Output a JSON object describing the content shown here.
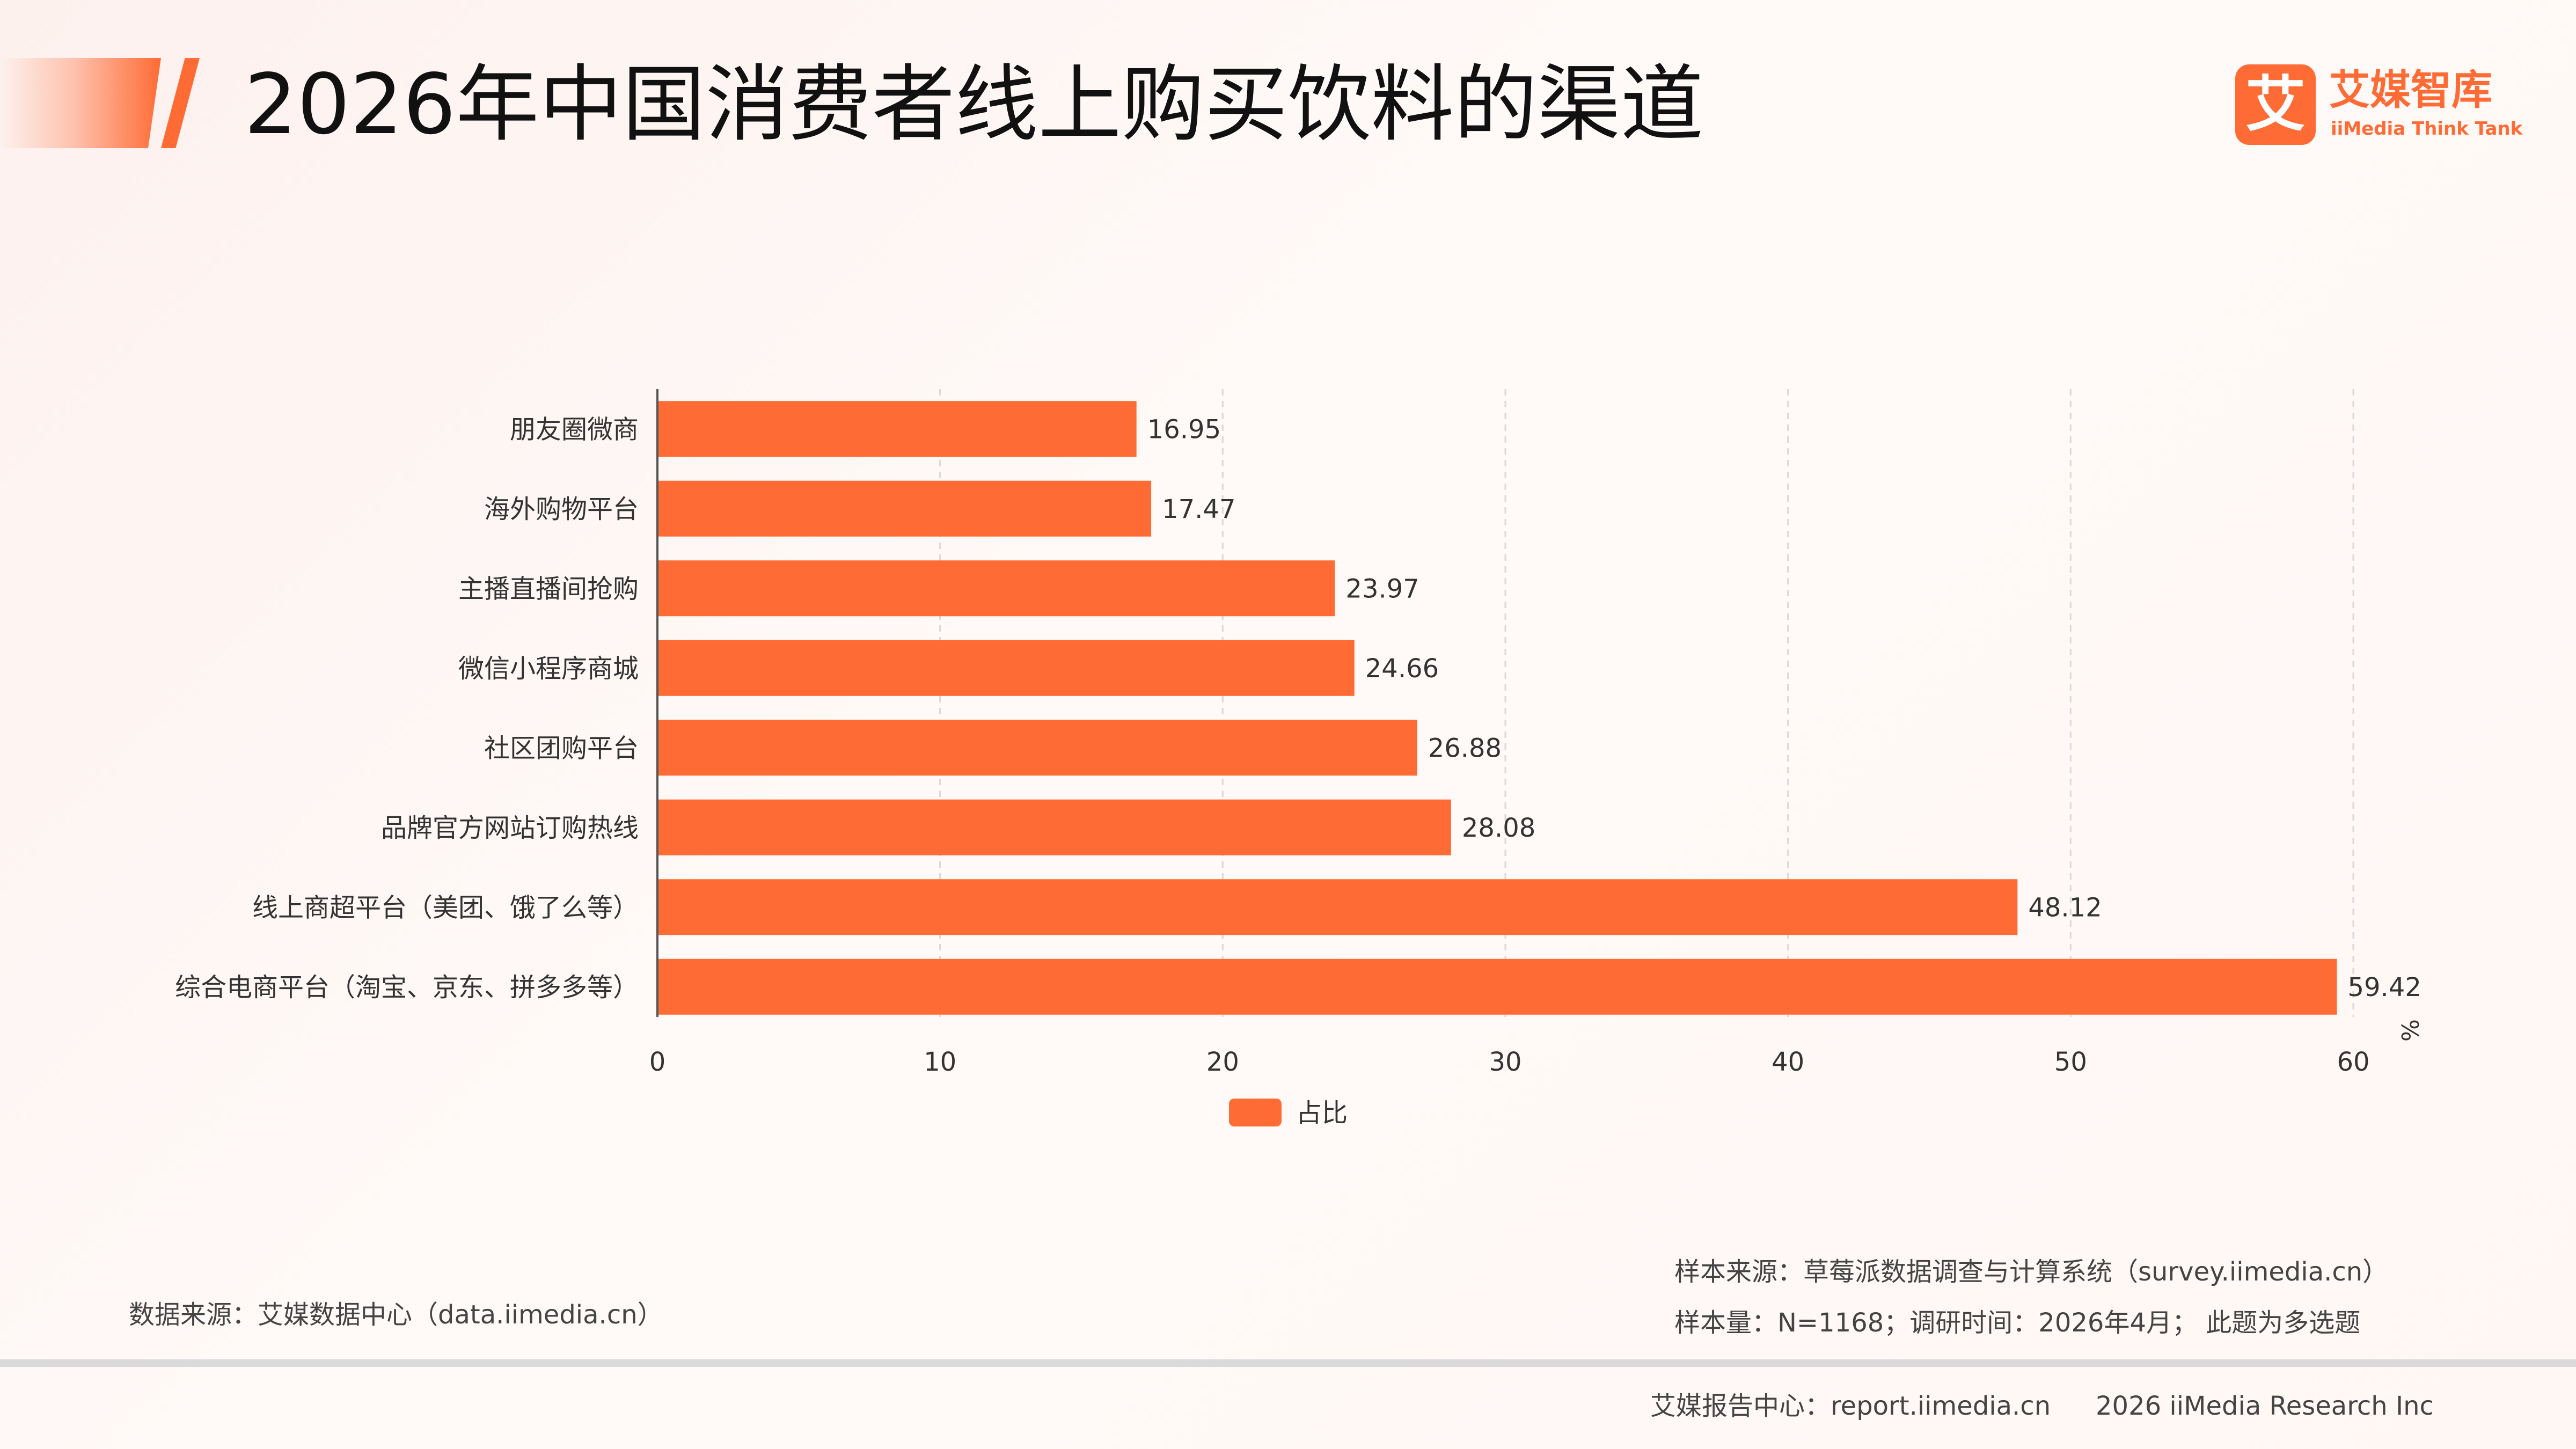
{
  "header": {
    "title": "2026年中国消费者线上购买饮料的渠道",
    "logo_mark": "艾",
    "logo_name": "艾媒智库",
    "logo_tagline": "iiMedia Think Tank"
  },
  "colors": {
    "accent": "#ff6b35",
    "bar": "#ff6b35",
    "grid": "#d9d9d9",
    "axis": "#555555"
  },
  "chart_data": {
    "type": "bar",
    "orientation": "horizontal",
    "categories": [
      "朋友圈微商",
      "海外购物平台",
      "主播直播间抢购",
      "微信小程序商城",
      "社区团购平台",
      "品牌官方网站订购热线",
      "线上商超平台（美团、饿了么等）",
      "综合电商平台（淘宝、京东、拼多多等）"
    ],
    "series": [
      {
        "name": "占比",
        "values": [
          16.95,
          17.47,
          23.97,
          24.66,
          26.88,
          28.08,
          48.12,
          59.42
        ]
      }
    ],
    "value_labels": [
      "16.95",
      "17.47",
      "23.97",
      "24.66",
      "26.88",
      "28.08",
      "48.12",
      "59.42"
    ],
    "xlim": [
      0,
      60
    ],
    "x_ticks": [
      "0",
      "10",
      "20",
      "30",
      "40",
      "50",
      "60"
    ],
    "x_unit": "%",
    "grid": "vertical dashed",
    "legend_position": "bottom-center"
  },
  "footer": {
    "data_source": "数据来源：艾媒数据中心（data.iimedia.cn）",
    "sample_source": "样本来源：草莓派数据调查与计算系统（survey.iimedia.cn）",
    "sample_size": "样本量：N=1168；调研时间：2026年4月； 此题为多选题",
    "report_center": "艾媒报告中心：report.iimedia.cn",
    "copyright": "2026 iiMedia Research Inc"
  }
}
